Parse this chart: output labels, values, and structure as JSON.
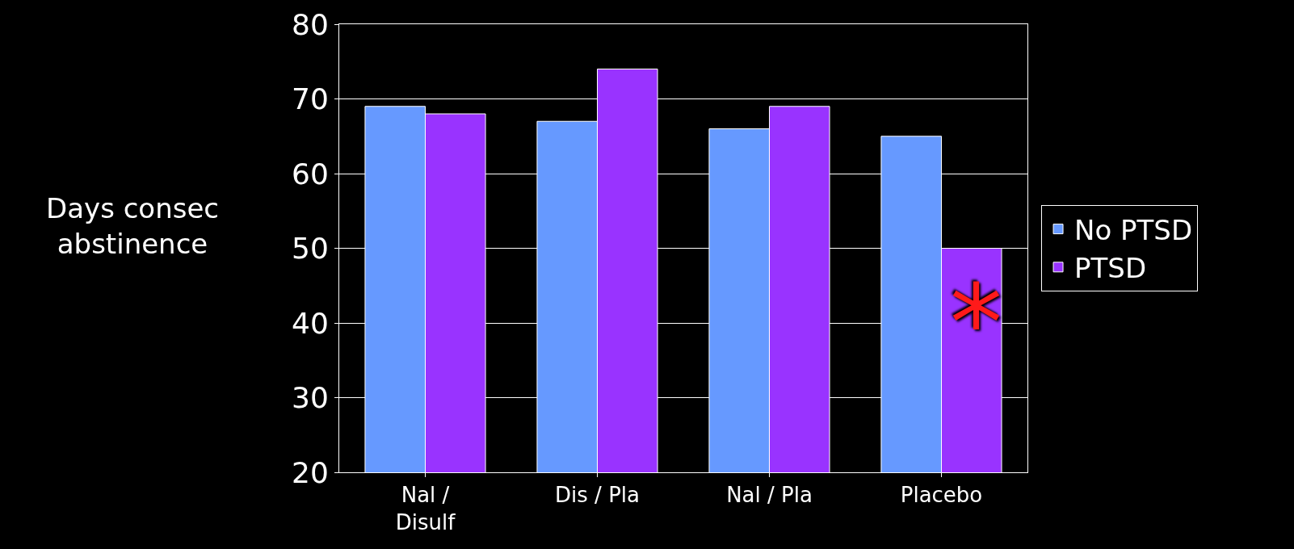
{
  "chart_data": {
    "type": "bar",
    "ylabel": "Days consec abstinence",
    "categories": [
      "Nal / Disulf",
      "Dis / Pla",
      "Nal / Pla",
      "Placebo"
    ],
    "series": [
      {
        "name": "No PTSD",
        "color": "#6699ff",
        "values": [
          69,
          67,
          66,
          65
        ]
      },
      {
        "name": "PTSD",
        "color": "#9933ff",
        "values": [
          68,
          74,
          69,
          50
        ]
      }
    ],
    "ylim": [
      20,
      80
    ],
    "yticks": [
      20,
      30,
      40,
      50,
      60,
      70,
      80
    ],
    "grid": "y",
    "legend": "right",
    "annotations": [
      {
        "text": "*",
        "x": "Placebo",
        "y": 40
      }
    ]
  }
}
